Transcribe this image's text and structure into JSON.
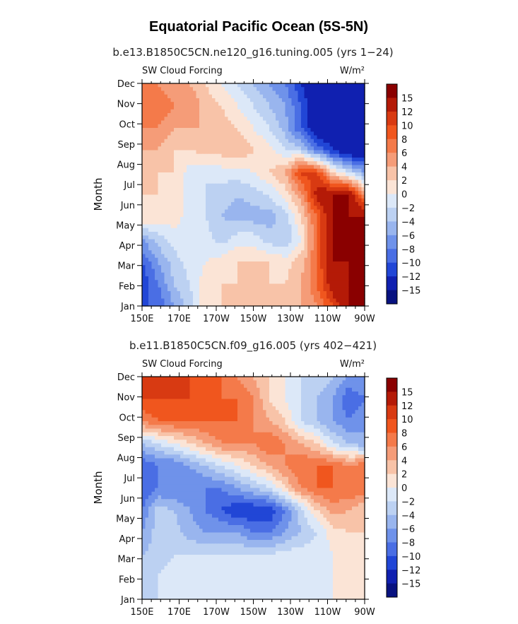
{
  "title": "Equatorial Pacific Ocean (5S-5N)",
  "colorbar": {
    "levels": [
      "15",
      "12",
      "10",
      "8",
      "6",
      "4",
      "2",
      "0",
      "−2",
      "−4",
      "−6",
      "−8",
      "−10",
      "−12",
      "−15"
    ],
    "colors": [
      "#8a0000",
      "#b41a07",
      "#d83a12",
      "#f0561e",
      "#f47a4a",
      "#f59c78",
      "#f8c3a8",
      "#fbe4d6",
      "#dce8f8",
      "#bcd1f2",
      "#99b5ee",
      "#6f92ea",
      "#4a6ee4",
      "#2146d6",
      "#1020b0",
      "#081280"
    ]
  },
  "chart_data": [
    {
      "type": "heatmap",
      "subtitle": "b.e13.B1850C5CN.ne120_g16.tuning.005 (yrs 1−24)",
      "left_label": "SW Cloud Forcing",
      "units_label": "W/m²",
      "ylabel": "Month",
      "x_ticks": [
        "150E",
        "170E",
        "170W",
        "150W",
        "130W",
        "110W",
        "90W"
      ],
      "y_ticks": [
        "Jan",
        "Feb",
        "Mar",
        "Apr",
        "May",
        "Jun",
        "Jul",
        "Aug",
        "Sep",
        "Oct",
        "Nov",
        "Dec"
      ],
      "grid": [
        [
          -10,
          -10,
          -6,
          -3,
          2,
          2,
          2,
          2,
          2,
          2,
          4,
          6,
          10,
          15,
          15
        ],
        [
          -12,
          -8,
          -4,
          -2,
          1,
          2,
          2,
          2,
          2,
          2,
          4,
          8,
          14,
          15,
          15
        ],
        [
          -10,
          -6,
          -3,
          -1,
          0,
          1,
          2,
          2,
          2,
          1,
          3,
          8,
          15,
          15,
          15
        ],
        [
          -6,
          -3,
          -1,
          0,
          -1,
          -3,
          -1,
          -1,
          -3,
          -4,
          0,
          8,
          15,
          15,
          15
        ],
        [
          2,
          1,
          1,
          -1,
          -2,
          -4,
          -5,
          -5,
          -5,
          -3,
          2,
          8,
          15,
          15,
          15
        ],
        [
          2,
          2,
          1,
          -1,
          -2,
          -3,
          -4,
          -3,
          -2,
          1,
          5,
          13,
          15,
          15,
          6
        ],
        [
          2,
          2,
          2,
          -1,
          -2,
          -1,
          -1,
          0,
          2,
          4,
          11,
          10,
          2,
          -2,
          -6
        ],
        [
          4,
          4,
          2,
          2,
          3,
          3,
          4,
          2,
          1,
          -2,
          -3,
          -8,
          -12,
          -15,
          -15
        ],
        [
          6,
          6,
          4,
          4,
          4,
          3,
          2,
          0,
          -2,
          -5,
          -10,
          -15,
          -15,
          -15,
          -15
        ],
        [
          8,
          8,
          6,
          6,
          3,
          2,
          0,
          -2,
          -4,
          -6,
          -10,
          -15,
          -15,
          -15,
          -15
        ],
        [
          6,
          6,
          4,
          4,
          2,
          0,
          -2,
          -4,
          -6,
          -8,
          -12,
          -15,
          -15,
          -15,
          -15
        ]
      ]
    },
    {
      "type": "heatmap",
      "subtitle": "b.e11.B1850C5CN.f09_g16.005 (yrs 402−421)",
      "left_label": "SW Cloud Forcing",
      "units_label": "W/m²",
      "ylabel": "Month",
      "x_ticks": [
        "150E",
        "170E",
        "170W",
        "150W",
        "130W",
        "110W",
        "90W"
      ],
      "y_ticks": [
        "Jan",
        "Feb",
        "Mar",
        "Apr",
        "May",
        "Jun",
        "Jul",
        "Aug",
        "Sep",
        "Oct",
        "Nov",
        "Dec"
      ],
      "grid": [
        [
          -2,
          -2,
          -2,
          -1,
          -2,
          -2,
          -2,
          -2,
          -2,
          -1,
          -1,
          -1,
          0,
          0,
          0
        ],
        [
          -3,
          -2,
          -1,
          -1,
          -2,
          -2,
          -2,
          -1,
          -1,
          -1,
          -2,
          -1,
          0,
          1,
          0
        ],
        [
          -4,
          -3,
          -2,
          -2,
          -2,
          -2,
          -2,
          -2,
          -2,
          -1,
          -1,
          -1,
          0,
          0,
          0
        ],
        [
          -6,
          -3,
          -3,
          -5,
          -6,
          -6,
          -6,
          -8,
          -8,
          -6,
          -4,
          -2,
          1,
          2,
          2
        ],
        [
          -8,
          -3,
          -4,
          -6,
          -8,
          -10,
          -12,
          -12,
          -12,
          -8,
          -3,
          2,
          5,
          4,
          2
        ],
        [
          -10,
          -8,
          -8,
          -8,
          -8,
          -8,
          -6,
          -4,
          -2,
          2,
          6,
          8,
          8,
          8,
          8
        ],
        [
          -10,
          -8,
          -8,
          -6,
          -4,
          -2,
          0,
          2,
          4,
          6,
          8,
          8,
          8,
          6,
          8
        ],
        [
          -4,
          -2,
          0,
          2,
          4,
          6,
          6,
          6,
          8,
          6,
          4,
          2,
          -2,
          -4,
          -6
        ],
        [
          6,
          8,
          8,
          8,
          8,
          8,
          8,
          6,
          4,
          2,
          -2,
          -4,
          -6,
          -8,
          -6
        ],
        [
          10,
          10,
          10,
          10,
          8,
          8,
          8,
          6,
          2,
          0,
          -2,
          -4,
          -6,
          -10,
          -8
        ],
        [
          12,
          12,
          12,
          10,
          8,
          8,
          6,
          4,
          2,
          0,
          -2,
          -2,
          -4,
          -6,
          -6
        ]
      ]
    }
  ]
}
